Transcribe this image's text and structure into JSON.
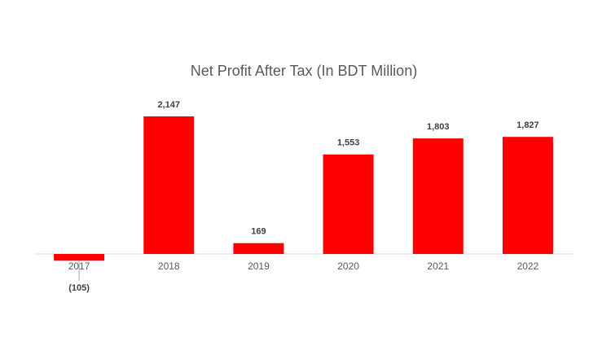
{
  "chart_data": {
    "type": "bar",
    "title": "Net Profit After Tax (In BDT Million)",
    "categories": [
      "2017",
      "2018",
      "2019",
      "2020",
      "2021",
      "2022"
    ],
    "values": [
      -105,
      2147,
      169,
      1553,
      1803,
      1827
    ],
    "value_labels": [
      "(105)",
      "2,147",
      "169",
      "1,553",
      "1,803",
      "1,827"
    ],
    "color": "#ff0000"
  }
}
